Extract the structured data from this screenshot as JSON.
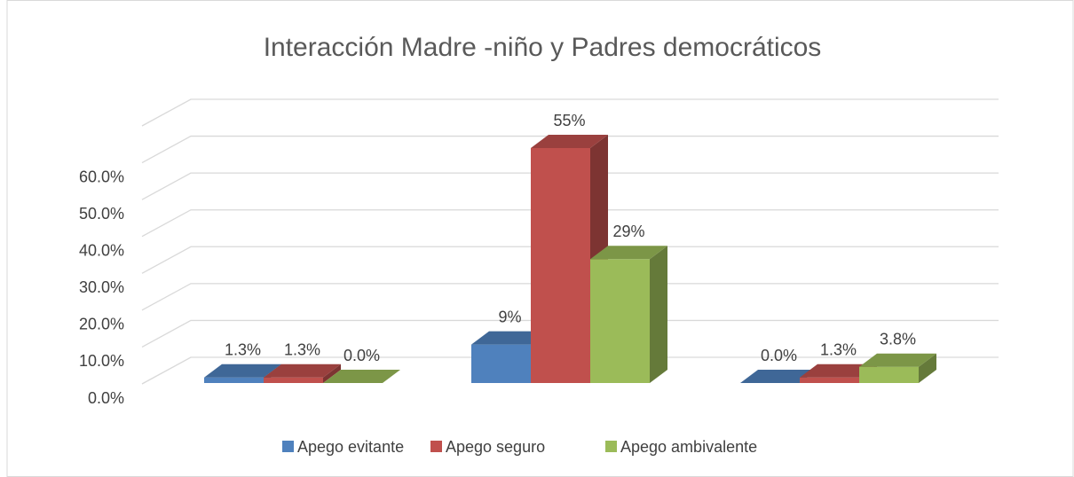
{
  "chart_data": {
    "type": "bar3d",
    "title": "Interacción Madre -niño y Padres democráticos",
    "categories": [
      null,
      null,
      null
    ],
    "series": [
      {
        "name": "Apego evitante",
        "color": "#4f81bd",
        "values": [
          1.3,
          9,
          0
        ],
        "value_labels": [
          "1.3%",
          "9%",
          "0.0%"
        ]
      },
      {
        "name": "Apego seguro",
        "color": "#c0504d",
        "values": [
          1.3,
          55,
          1.3
        ],
        "value_labels": [
          "1.3%",
          "55%",
          "1.3%"
        ]
      },
      {
        "name": "Apego ambivalente",
        "color": "#9bbb59",
        "values": [
          0,
          29,
          3.8
        ],
        "value_labels": [
          "0.0%",
          "29%",
          "3.8%"
        ]
      }
    ],
    "ylim": [
      0,
      70
    ],
    "yticks": [
      {
        "value": 0,
        "label": "0.0%"
      },
      {
        "value": 10,
        "label": "10.0%"
      },
      {
        "value": 20,
        "label": "20.0%"
      },
      {
        "value": 30,
        "label": "30.0%"
      },
      {
        "value": 40,
        "label": "40.0%"
      },
      {
        "value": 50,
        "label": "50.0%"
      },
      {
        "value": 60,
        "label": "60.0%"
      }
    ],
    "grid": true,
    "legend": "bottom"
  }
}
